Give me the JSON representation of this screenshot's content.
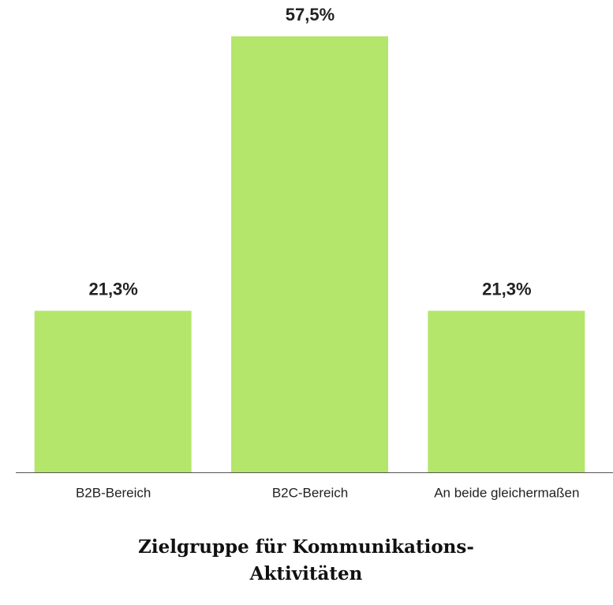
{
  "chart_data": {
    "type": "bar",
    "title": "Zielgruppe für Kommunikations-Aktivitäten",
    "categories": [
      "B2B-Bereich",
      "B2C-Bereich",
      "An beide gleichermaßen"
    ],
    "values": [
      21.3,
      57.5,
      21.3
    ],
    "value_labels": [
      "21,3%",
      "57,5%",
      "21,3%"
    ],
    "color": "#b3e66b"
  }
}
